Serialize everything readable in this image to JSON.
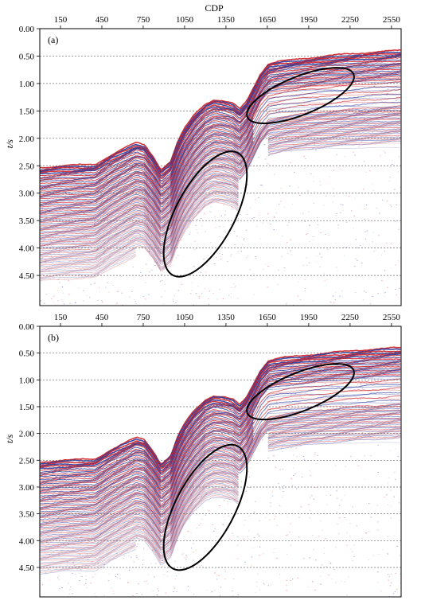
{
  "x_axis_title": "CDP",
  "y_axis_label": "t/s",
  "cdp_ticks": [
    "150",
    "450",
    "750",
    "1050",
    "1350",
    "1650",
    "1950",
    "2250",
    "2550"
  ],
  "cdp_values": [
    150,
    450,
    750,
    1050,
    1350,
    1650,
    1950,
    2250,
    2550
  ],
  "time_ticks": [
    "0.00",
    "0.50",
    "1.00",
    "1.50",
    "2.00",
    "2.50",
    "3.00",
    "3.50",
    "4.00",
    "4.50"
  ],
  "time_values": [
    0,
    0.5,
    1.0,
    1.5,
    2.0,
    2.5,
    3.0,
    3.5,
    4.0,
    4.5
  ],
  "cdp_range": [
    0,
    2620
  ],
  "time_range": [
    0,
    5.05
  ],
  "grid": "horizontal dashed lines at each time tick",
  "colors": {
    "positive": "#d0262c",
    "negative": "#2b3b9c",
    "frame": "#000000",
    "grid": "#6d6d6d"
  },
  "panels": [
    {
      "label": "(a)",
      "ellipse_count": 2
    },
    {
      "label": "(b)",
      "ellipse_count": 2
    }
  ]
}
